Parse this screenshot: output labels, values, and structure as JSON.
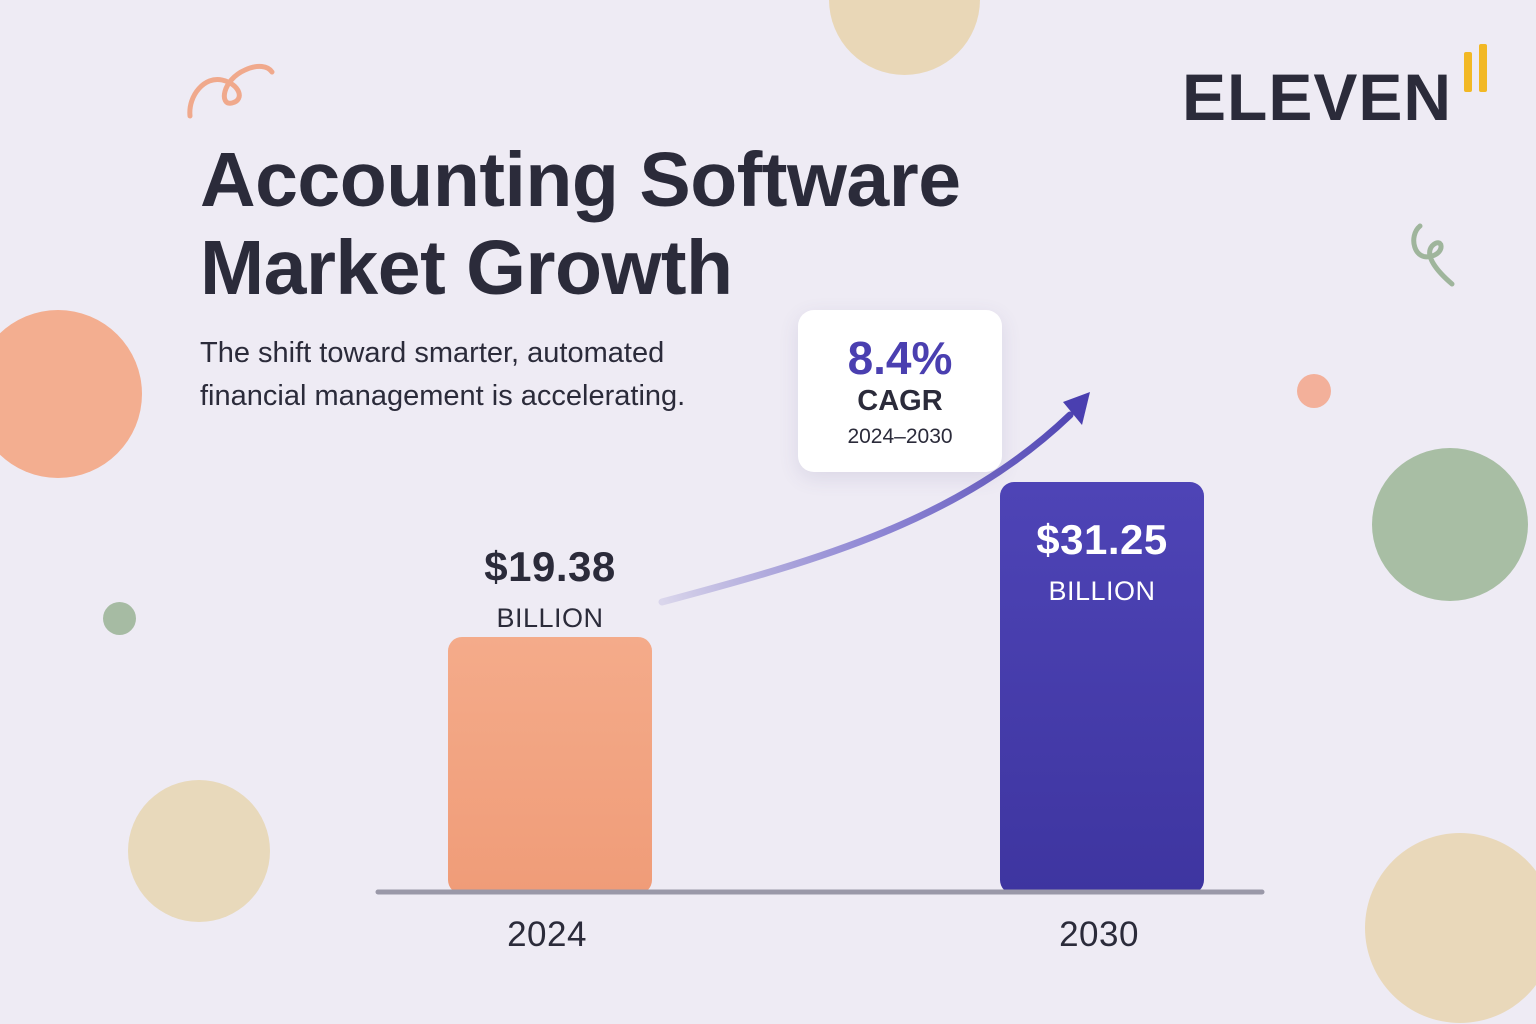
{
  "brand": {
    "name": "ELEVEN",
    "accent_color": "#f2b824"
  },
  "header": {
    "title_lines": [
      "Accounting Software",
      "Market Growth"
    ],
    "subtitle_lines": [
      "The shift toward smarter, automated",
      "financial management is accelerating."
    ]
  },
  "cagr": {
    "value": "8.4%",
    "label": "CAGR",
    "period": "2024–2030"
  },
  "colors": {
    "background": "#eeebf4",
    "bar_2024": "#f2a07e",
    "bar_2030": "#4a40b0",
    "arrow": "#4a3fb0",
    "text": "#2b2b3a",
    "baseline": "#9a98a8"
  },
  "chart_data": {
    "type": "bar",
    "categories": [
      "2024",
      "2030"
    ],
    "values": [
      19.38,
      31.25
    ],
    "unit": "BILLION",
    "value_labels": [
      "$19.38",
      "$31.25"
    ],
    "ylim": [
      0,
      31.25
    ],
    "grid": false,
    "annotation": "8.4% CAGR 2024–2030"
  }
}
